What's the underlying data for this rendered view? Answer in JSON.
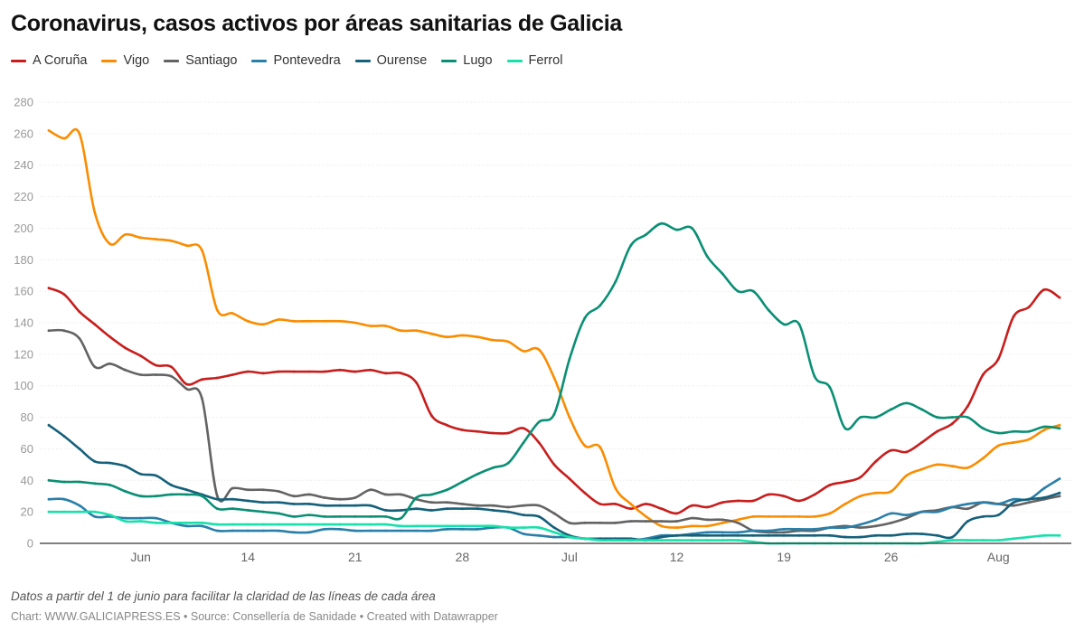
{
  "title": "Coronavirus, casos activos por áreas sanitarias de Galicia",
  "note": "Datos a partir del 1 de junio para facilitar la claridad de las líneas de cada área",
  "credits": "Chart: WWW.GALICIAPRESS.ES • Source: Consellería de Sanidade • Created with Datawrapper",
  "chart_data": {
    "type": "line",
    "title": "Coronavirus, casos activos por áreas sanitarias de Galicia",
    "xlabel": "",
    "ylabel": "",
    "ylim": [
      0,
      280
    ],
    "yticks": [
      0,
      20,
      40,
      60,
      80,
      100,
      120,
      140,
      160,
      180,
      200,
      220,
      240,
      260,
      280
    ],
    "grid": true,
    "legend": "top-left",
    "x_range": [
      "06-01",
      "08-06"
    ],
    "xticks": [
      {
        "date": "06-07",
        "label": "Jun"
      },
      {
        "date": "06-14",
        "label": "14"
      },
      {
        "date": "06-21",
        "label": "21"
      },
      {
        "date": "06-28",
        "label": "28"
      },
      {
        "date": "07-05",
        "label": "Jul"
      },
      {
        "date": "07-12",
        "label": "12"
      },
      {
        "date": "07-19",
        "label": "19"
      },
      {
        "date": "07-26",
        "label": "26"
      },
      {
        "date": "08-02",
        "label": "Aug"
      }
    ],
    "series": [
      {
        "name": "A Coruña",
        "color": "#c71e1d",
        "values": [
          162,
          158,
          147,
          139,
          131,
          124,
          119,
          113,
          112,
          101,
          104,
          105,
          107,
          109,
          108,
          109,
          109,
          109,
          109,
          110,
          109,
          110,
          108,
          108,
          102,
          81,
          75,
          72,
          71,
          70,
          70,
          73,
          64,
          50,
          41,
          32,
          25,
          25,
          22,
          25,
          22,
          19,
          24,
          23,
          26,
          27,
          27,
          31,
          30,
          27,
          31,
          37,
          39,
          42,
          52,
          59,
          58,
          64,
          71,
          76,
          87,
          107,
          117,
          144,
          150,
          161,
          156
        ]
      },
      {
        "name": "Vigo",
        "color": "#fa8c00",
        "values": [
          262,
          257,
          260,
          210,
          190,
          196,
          194,
          193,
          192,
          189,
          186,
          148,
          146,
          141,
          139,
          142,
          141,
          141,
          141,
          141,
          140,
          138,
          138,
          135,
          135,
          133,
          131,
          132,
          131,
          129,
          128,
          122,
          123,
          105,
          80,
          62,
          61,
          35,
          25,
          17,
          11,
          10,
          11,
          11,
          13,
          15,
          17,
          17,
          17,
          17,
          17,
          19,
          25,
          30,
          32,
          33,
          43,
          47,
          50,
          49,
          48,
          54,
          62,
          64,
          66,
          72,
          75
        ]
      },
      {
        "name": "Santiago",
        "color": "#636363",
        "values": [
          135,
          135,
          130,
          112,
          114,
          110,
          107,
          107,
          106,
          98,
          92,
          30,
          35,
          34,
          34,
          33,
          30,
          31,
          29,
          28,
          29,
          34,
          31,
          31,
          28,
          26,
          26,
          25,
          24,
          24,
          23,
          24,
          24,
          19,
          13,
          13,
          13,
          13,
          14,
          14,
          14,
          14,
          16,
          15,
          15,
          13,
          8,
          7,
          7,
          8,
          8,
          10,
          11,
          10,
          11,
          13,
          16,
          20,
          21,
          23,
          22,
          26,
          25,
          24,
          26,
          28,
          30
        ]
      },
      {
        "name": "Pontevedra",
        "color": "#2a7fa8",
        "values": [
          28,
          28,
          24,
          17,
          17,
          16,
          16,
          16,
          13,
          11,
          11,
          8,
          8,
          8,
          8,
          8,
          7,
          7,
          9,
          9,
          8,
          8,
          8,
          8,
          8,
          8,
          9,
          9,
          9,
          10,
          10,
          6,
          5,
          4,
          4,
          3,
          3,
          3,
          2,
          3,
          5,
          5,
          6,
          7,
          7,
          7,
          8,
          8,
          9,
          9,
          9,
          10,
          10,
          12,
          15,
          19,
          18,
          20,
          20,
          23,
          25,
          26,
          25,
          28,
          28,
          35,
          41
        ]
      },
      {
        "name": "Ourense",
        "color": "#15607a",
        "values": [
          75,
          68,
          60,
          52,
          51,
          49,
          44,
          43,
          37,
          34,
          31,
          28,
          28,
          27,
          26,
          26,
          25,
          25,
          24,
          24,
          24,
          24,
          21,
          21,
          22,
          21,
          22,
          22,
          22,
          21,
          20,
          18,
          17,
          10,
          5,
          3,
          3,
          3,
          3,
          2,
          4,
          5,
          5,
          5,
          5,
          5,
          5,
          5,
          5,
          5,
          5,
          5,
          4,
          4,
          5,
          5,
          6,
          6,
          5,
          4,
          14,
          17,
          18,
          26,
          28,
          29,
          32
        ]
      },
      {
        "name": "Lugo",
        "color": "#0a8f74",
        "values": [
          40,
          39,
          39,
          38,
          37,
          33,
          30,
          30,
          31,
          31,
          30,
          22,
          22,
          21,
          20,
          19,
          17,
          18,
          17,
          17,
          17,
          17,
          17,
          16,
          29,
          31,
          34,
          39,
          44,
          48,
          51,
          64,
          77,
          82,
          117,
          143,
          151,
          166,
          189,
          196,
          203,
          199,
          200,
          182,
          171,
          160,
          160,
          148,
          139,
          139,
          106,
          99,
          73,
          80,
          80,
          85,
          89,
          85,
          80,
          80,
          80,
          73,
          70,
          71,
          71,
          74,
          73
        ]
      },
      {
        "name": "Ferrol",
        "color": "#18e0aa",
        "values": [
          20,
          20,
          20,
          20,
          18,
          14,
          14,
          13,
          13,
          13,
          13,
          12,
          12,
          12,
          12,
          12,
          12,
          12,
          12,
          12,
          12,
          12,
          12,
          11,
          11,
          11,
          11,
          11,
          11,
          11,
          10,
          10,
          10,
          7,
          4,
          3,
          2,
          2,
          2,
          2,
          2,
          2,
          2,
          2,
          2,
          2,
          1,
          0,
          0,
          0,
          0,
          0,
          0,
          0,
          0,
          0,
          0,
          0,
          1,
          2,
          2,
          2,
          2,
          3,
          4,
          5,
          5
        ]
      }
    ]
  }
}
